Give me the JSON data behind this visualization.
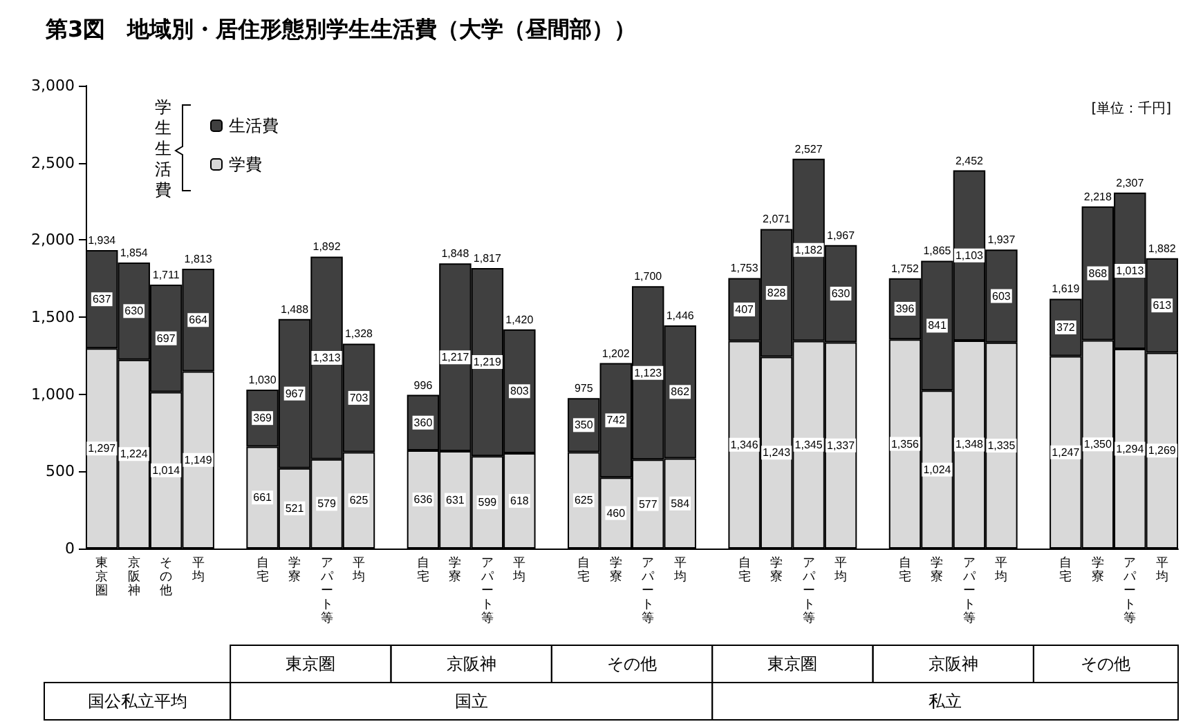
{
  "chart_data": {
    "type": "bar",
    "stacked": true,
    "title": "第3図　地域別・居住形態別学生生活費（大学（昼間部））",
    "legend_title": "学生生活費",
    "legend": "top left",
    "grid": false,
    "categories": [
      "東京圏",
      "京阪神",
      "その他",
      "平均",
      null,
      "自宅",
      "学寮",
      "アパート等",
      "平均",
      null,
      "自宅",
      "学寮",
      "アパート等",
      "平均",
      null,
      "自宅",
      "学寮",
      "アパート等",
      "平均",
      null,
      "自宅",
      "学寮",
      "アパート等",
      "平均",
      null,
      "自宅",
      "学寮",
      "アパート等",
      "平均",
      null,
      "自宅",
      "学寮",
      "アパート等",
      "平均"
    ],
    "series": [
      {
        "name": "学費",
        "color": "#d9d9d9",
        "values": [
          1297,
          1224,
          1014,
          1149,
          null,
          661,
          521,
          579,
          625,
          null,
          636,
          631,
          599,
          618,
          null,
          625,
          460,
          577,
          584,
          null,
          1346,
          1243,
          1345,
          1337,
          null,
          1356,
          1024,
          1348,
          1335,
          null,
          1247,
          1350,
          1294,
          1269
        ],
        "value_labels": [
          "1,297",
          "1,224",
          "1,014",
          "1,149",
          null,
          "661",
          "521",
          "579",
          "625",
          null,
          "636",
          "631",
          "599",
          "618",
          null,
          "625",
          "460",
          "577",
          "584",
          null,
          "1,346",
          "1,243",
          "1,345",
          "1,337",
          null,
          "1,356",
          "1,024",
          "1,348",
          "1,335",
          null,
          "1,247",
          "1,350",
          "1,294",
          "1,269"
        ]
      },
      {
        "name": "生活費",
        "color": "#404040",
        "values": [
          637,
          630,
          697,
          664,
          null,
          369,
          967,
          1313,
          703,
          null,
          360,
          1217,
          1219,
          803,
          null,
          350,
          742,
          1123,
          862,
          null,
          407,
          828,
          1182,
          630,
          null,
          396,
          841,
          1103,
          603,
          null,
          372,
          868,
          1013,
          613
        ],
        "value_labels": [
          "637",
          "630",
          "697",
          "664",
          null,
          "369",
          "967",
          "1,313",
          "703",
          null,
          "360",
          "1,217",
          "1,219",
          "803",
          null,
          "350",
          "742",
          "1,123",
          "862",
          null,
          "407",
          "828",
          "1,182",
          "630",
          null,
          "396",
          "841",
          "1,103",
          "603",
          null,
          "372",
          "868",
          "1,013",
          "613"
        ]
      }
    ],
    "totals": [
      "1,934",
      "1,854",
      "1,711",
      "1,813",
      null,
      "1,030",
      "1,488",
      "1,892",
      "1,328",
      null,
      "996",
      "1,848",
      "1,817",
      "1,420",
      null,
      "975",
      "1,202",
      "1,700",
      "1,446",
      null,
      "1,753",
      "2,071",
      "2,527",
      "1,967",
      null,
      "1,752",
      "1,865",
      "2,452",
      "1,937",
      null,
      "1,619",
      "2,218",
      "2,307",
      "1,882"
    ],
    "ylim": [
      0,
      3000
    ],
    "yticks": [
      0,
      500,
      {
        "value": 1000,
        "label": "1,000"
      },
      {
        "value": 1500,
        "label": "1,500"
      },
      {
        "value": 2000,
        "label": "2,000"
      },
      {
        "value": 2500,
        "label": "2,500"
      },
      {
        "value": 3000,
        "label": "3,000"
      }
    ],
    "annotations": [
      "[単位：千円]",
      "東京圏",
      "京阪神",
      "その他",
      "東京圏",
      "京阪神",
      "その他",
      "国公私立平均",
      "国立",
      "私立"
    ]
  }
}
